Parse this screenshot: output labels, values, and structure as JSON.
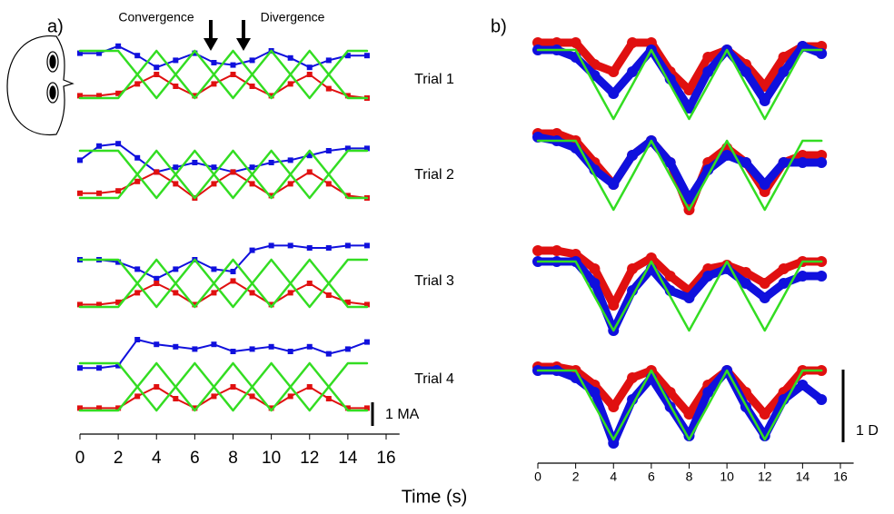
{
  "chart_data": [
    {
      "type": "line",
      "label": "a)",
      "annotations": [
        "Convergence",
        "Divergence"
      ],
      "xlabel": "Time (s)",
      "x": [
        0,
        1,
        2,
        3,
        4,
        5,
        6,
        7,
        8,
        9,
        10,
        11,
        12,
        13,
        14,
        15
      ],
      "xlim": [
        0,
        16.7
      ],
      "xticks": [
        0,
        2,
        4,
        6,
        8,
        10,
        12,
        14,
        16
      ],
      "scale_bar": {
        "value": 1,
        "label": "1 MA"
      },
      "trials": [
        {
          "label": "Trial 1",
          "series": [
            {
              "color": "#1010dd",
              "values": [
                1.9,
                1.9,
                2.2,
                1.8,
                1.3,
                1.6,
                1.9,
                1.5,
                1.4,
                1.6,
                2.0,
                1.7,
                1.3,
                1.6,
                1.8,
                1.8
              ]
            },
            {
              "color": "#e01010",
              "values": [
                0.1,
                0.1,
                0.2,
                0.6,
                1.0,
                0.5,
                0.1,
                0.6,
                1.0,
                0.5,
                0.1,
                0.6,
                1.0,
                0.4,
                0.1,
                0.0
              ]
            },
            {
              "color": "#33dd22",
              "values": [
                2,
                2,
                2,
                1,
                0,
                1,
                2,
                1,
                0,
                1,
                2,
                1,
                0,
                1,
                2,
                2
              ]
            },
            {
              "color": "#33dd22",
              "values": [
                0,
                0,
                0,
                1,
                2,
                1,
                0,
                1,
                2,
                1,
                0,
                1,
                2,
                1,
                0,
                0
              ]
            }
          ]
        },
        {
          "label": "Trial 2",
          "series": [
            {
              "color": "#1010dd",
              "values": [
                1.6,
                2.2,
                2.3,
                1.7,
                1.1,
                1.3,
                1.5,
                1.3,
                1.1,
                1.3,
                1.5,
                1.6,
                1.8,
                2.0,
                2.1,
                2.1
              ]
            },
            {
              "color": "#e01010",
              "values": [
                0.2,
                0.2,
                0.3,
                0.7,
                1.1,
                0.6,
                0.0,
                0.6,
                1.1,
                0.6,
                0.1,
                0.6,
                1.1,
                0.6,
                0.1,
                0.0
              ]
            },
            {
              "color": "#33dd22",
              "values": [
                2,
                2,
                2,
                1,
                0,
                1,
                2,
                1,
                0,
                1,
                2,
                1,
                0,
                1,
                2,
                2
              ]
            },
            {
              "color": "#33dd22",
              "values": [
                0,
                0,
                0,
                1,
                2,
                1,
                0,
                1,
                2,
                1,
                0,
                1,
                2,
                1,
                0,
                0
              ]
            }
          ]
        },
        {
          "label": "Trial 3",
          "series": [
            {
              "color": "#1010dd",
              "values": [
                2.0,
                2.0,
                1.9,
                1.6,
                1.2,
                1.6,
                2.0,
                1.6,
                1.5,
                2.4,
                2.6,
                2.6,
                2.5,
                2.5,
                2.6,
                2.6
              ]
            },
            {
              "color": "#e01010",
              "values": [
                0.1,
                0.1,
                0.2,
                0.6,
                1.0,
                0.6,
                0.1,
                0.6,
                1.1,
                0.6,
                0.1,
                0.6,
                1.0,
                0.5,
                0.2,
                0.1
              ]
            },
            {
              "color": "#33dd22",
              "values": [
                2,
                2,
                2,
                1,
                0,
                1,
                2,
                1,
                0,
                1,
                2,
                1,
                0,
                1,
                2,
                2
              ]
            },
            {
              "color": "#33dd22",
              "values": [
                0,
                0,
                0,
                1,
                2,
                1,
                0,
                1,
                2,
                1,
                0,
                1,
                2,
                1,
                0,
                0
              ]
            }
          ]
        },
        {
          "label": "Trial 4",
          "series": [
            {
              "color": "#1010dd",
              "values": [
                1.8,
                1.8,
                1.9,
                3.0,
                2.8,
                2.7,
                2.6,
                2.8,
                2.5,
                2.6,
                2.7,
                2.5,
                2.7,
                2.4,
                2.6,
                2.9
              ]
            },
            {
              "color": "#e01010",
              "values": [
                0.1,
                0.1,
                0.1,
                0.6,
                1.0,
                0.5,
                0.1,
                0.6,
                1.0,
                0.6,
                0.1,
                0.6,
                1.0,
                0.5,
                0.1,
                0.1
              ]
            },
            {
              "color": "#33dd22",
              "values": [
                2,
                2,
                2,
                1,
                0,
                1,
                2,
                1,
                0,
                1,
                2,
                1,
                0,
                1,
                2,
                2
              ]
            },
            {
              "color": "#33dd22",
              "values": [
                0,
                0,
                0,
                1,
                2,
                1,
                0,
                1,
                2,
                1,
                0,
                1,
                2,
                1,
                0,
                0
              ]
            }
          ]
        }
      ]
    },
    {
      "type": "line",
      "label": "b)",
      "x": [
        0,
        1,
        2,
        3,
        4,
        5,
        6,
        7,
        8,
        9,
        10,
        11,
        12,
        13,
        14,
        15
      ],
      "xlim": [
        0,
        16.7
      ],
      "xticks": [
        0,
        2,
        4,
        6,
        8,
        10,
        12,
        14,
        16
      ],
      "scale_bar": {
        "value": 1,
        "label": "1 D"
      },
      "trials": [
        {
          "series": [
            {
              "color": "#e01010",
              "values": [
                0.1,
                0.1,
                0.1,
                -0.2,
                -0.3,
                0.1,
                0.1,
                -0.3,
                -0.55,
                -0.1,
                0,
                -0.2,
                -0.5,
                -0.1,
                0.05,
                0.05
              ]
            },
            {
              "color": "#1010dd",
              "values": [
                0,
                0,
                -0.1,
                -0.35,
                -0.6,
                -0.3,
                0,
                -0.4,
                -0.8,
                -0.3,
                0,
                -0.3,
                -0.7,
                -0.3,
                0.05,
                -0.05
              ]
            },
            {
              "color": "#33dd22",
              "values": [
                0,
                0,
                0,
                -0.48,
                -0.95,
                -0.48,
                0,
                -0.48,
                -0.95,
                -0.48,
                0,
                -0.48,
                -0.95,
                -0.48,
                0,
                0
              ]
            }
          ]
        },
        {
          "series": [
            {
              "color": "#e01010",
              "values": [
                0.1,
                0.1,
                0,
                -0.3,
                -0.6,
                -0.2,
                0,
                -0.3,
                -0.95,
                -0.3,
                -0.1,
                -0.3,
                -0.7,
                -0.3,
                -0.2,
                -0.2
              ]
            },
            {
              "color": "#1010dd",
              "values": [
                0.05,
                0,
                -0.1,
                -0.4,
                -0.6,
                -0.2,
                0,
                -0.3,
                -0.8,
                -0.4,
                -0.2,
                -0.3,
                -0.6,
                -0.3,
                -0.3,
                -0.3
              ]
            },
            {
              "color": "#33dd22",
              "values": [
                0,
                0,
                0,
                -0.48,
                -0.95,
                -0.48,
                0,
                -0.48,
                -0.95,
                -0.48,
                0,
                -0.48,
                -0.95,
                -0.48,
                0,
                0
              ]
            }
          ]
        },
        {
          "series": [
            {
              "color": "#e01010",
              "values": [
                0.15,
                0.15,
                0.1,
                -0.1,
                -0.6,
                -0.1,
                0.05,
                -0.2,
                -0.4,
                -0.1,
                -0.05,
                -0.15,
                -0.3,
                -0.1,
                0,
                0
              ]
            },
            {
              "color": "#1010dd",
              "values": [
                0,
                0,
                0,
                -0.3,
                -0.95,
                -0.4,
                -0.1,
                -0.4,
                -0.5,
                -0.2,
                -0.1,
                -0.3,
                -0.5,
                -0.3,
                -0.2,
                -0.2
              ]
            },
            {
              "color": "#33dd22",
              "values": [
                0,
                0,
                0,
                -0.48,
                -0.95,
                -0.48,
                0,
                -0.48,
                -0.95,
                -0.48,
                0,
                -0.48,
                -0.95,
                -0.48,
                0,
                0
              ]
            }
          ]
        },
        {
          "series": [
            {
              "color": "#e01010",
              "values": [
                0.05,
                0.05,
                0,
                -0.2,
                -0.5,
                -0.1,
                0,
                -0.3,
                -0.6,
                -0.2,
                0,
                -0.3,
                -0.6,
                -0.3,
                0,
                0
              ]
            },
            {
              "color": "#1010dd",
              "values": [
                0,
                0,
                -0.1,
                -0.3,
                -1.0,
                -0.4,
                -0.1,
                -0.5,
                -0.9,
                -0.3,
                0,
                -0.5,
                -0.9,
                -0.4,
                -0.2,
                -0.4
              ]
            },
            {
              "color": "#33dd22",
              "values": [
                0,
                0,
                0,
                -0.48,
                -0.95,
                -0.48,
                0,
                -0.48,
                -0.95,
                -0.48,
                0,
                -0.48,
                -0.95,
                -0.48,
                0,
                0
              ]
            }
          ]
        }
      ]
    }
  ]
}
